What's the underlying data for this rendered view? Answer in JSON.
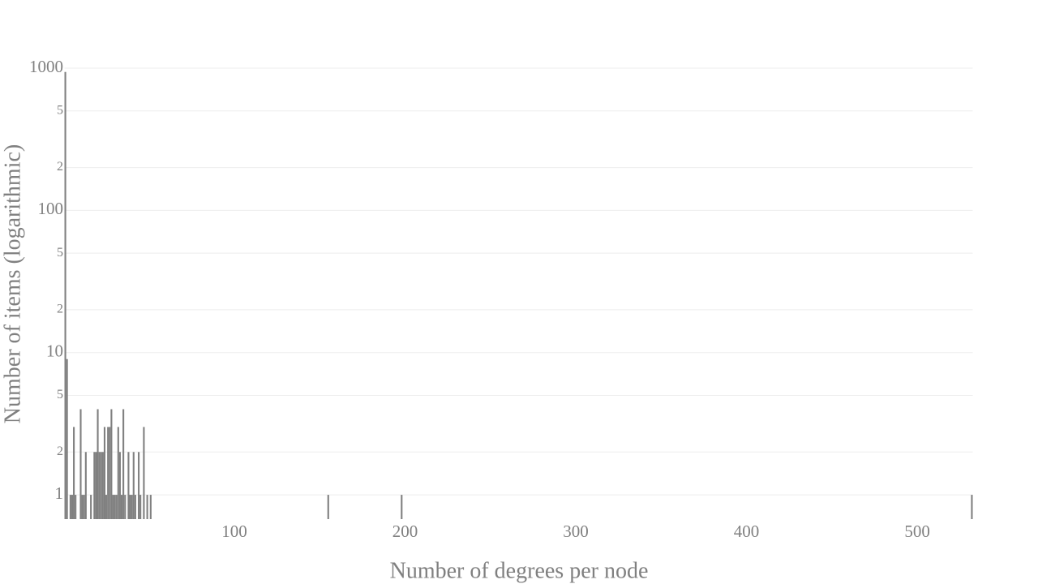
{
  "chart_data": {
    "type": "bar",
    "y_label": "Number of items (logarithmic)",
    "x_label": "Number of degrees per node",
    "color": "#808080",
    "log_y": true,
    "grid": true,
    "x": [
      1,
      2,
      4,
      5,
      6,
      7,
      10,
      11,
      12,
      13,
      16,
      18,
      19,
      20,
      21,
      22,
      23,
      24,
      25,
      26,
      27,
      28,
      29,
      30,
      31,
      32,
      33,
      34,
      35,
      36,
      38,
      39,
      40,
      41,
      42,
      44,
      45,
      47,
      49,
      51,
      155,
      198,
      532
    ],
    "values": [
      940,
      9,
      1,
      1,
      3,
      1,
      4,
      1,
      1,
      2,
      1,
      2,
      2,
      4,
      2,
      2,
      2,
      3,
      1,
      3,
      3,
      4,
      1,
      1,
      1,
      3,
      2,
      1,
      4,
      1,
      2,
      1,
      1,
      2,
      1,
      2,
      1,
      3,
      1,
      1,
      1,
      1,
      1
    ],
    "xlim": [
      0.5,
      532.5
    ],
    "xticks": [
      100,
      200,
      300,
      400,
      500
    ],
    "ylim": [
      0.675,
      1000
    ],
    "yticks": [
      1,
      {
        "value": 2,
        "label": "2"
      },
      {
        "value": 5,
        "label": "5"
      },
      10,
      {
        "value": 20,
        "label": "2"
      },
      {
        "value": 50,
        "label": "5"
      },
      100,
      {
        "value": 200,
        "label": "2"
      },
      {
        "value": 500,
        "label": "5"
      },
      1000
    ]
  }
}
